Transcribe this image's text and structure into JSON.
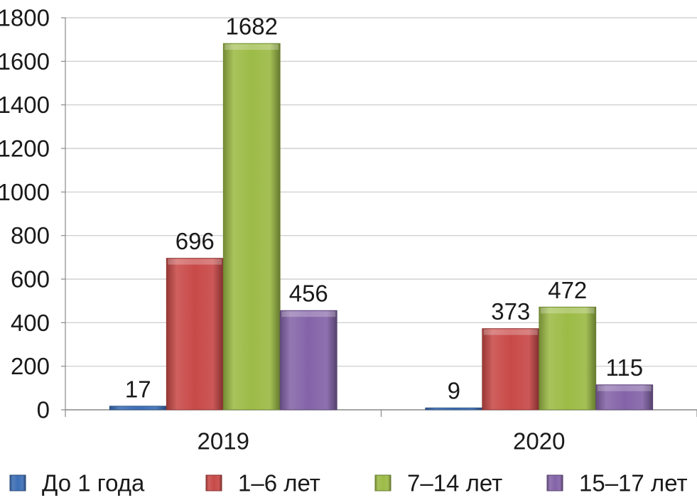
{
  "chart_data": {
    "type": "bar",
    "categories": [
      "2019",
      "2020"
    ],
    "series": [
      {
        "name": "До 1 года",
        "values": [
          17,
          9
        ],
        "color": "#3d6fb6"
      },
      {
        "name": "1–6 лет",
        "values": [
          696,
          373
        ],
        "color": "#c84a48"
      },
      {
        "name": "7–14 лет",
        "values": [
          1682,
          472
        ],
        "color": "#9cbb46"
      },
      {
        "name": "15–17 лет",
        "values": [
          456,
          115
        ],
        "color": "#8464a8"
      }
    ],
    "data_labels": [
      [
        "17",
        "9"
      ],
      [
        "696",
        "373"
      ],
      [
        "1682",
        "472"
      ],
      [
        "456",
        "115"
      ]
    ],
    "yticks": [
      "0",
      "200",
      "400",
      "600",
      "800",
      "1000",
      "1200",
      "1400",
      "1600",
      "1800"
    ],
    "ylim": [
      0,
      1800
    ],
    "grid": true,
    "legend_position": "bottom",
    "title": "",
    "xlabel": "",
    "ylabel": ""
  }
}
